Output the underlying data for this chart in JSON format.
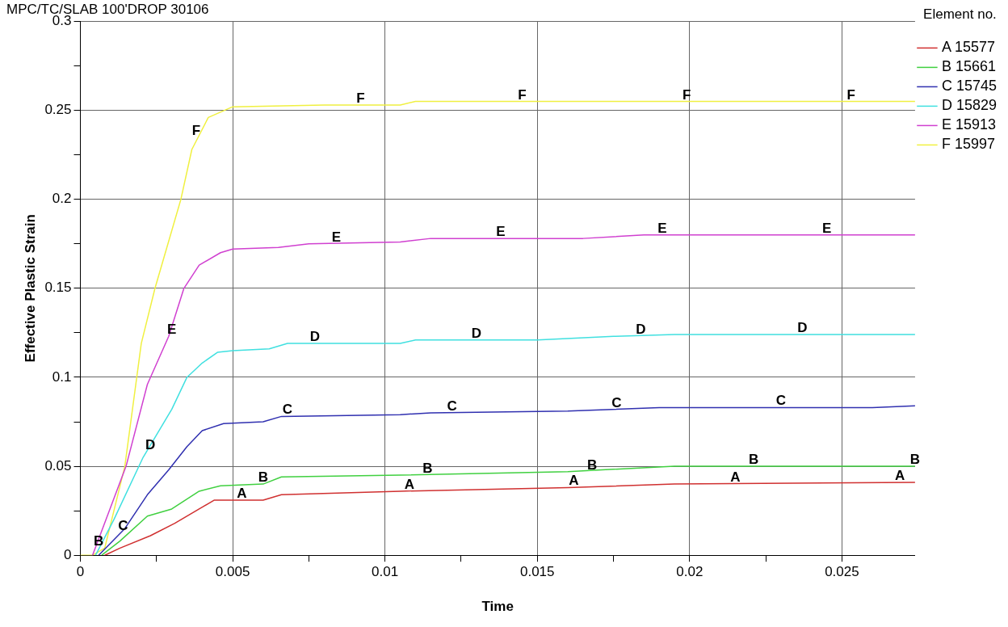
{
  "chart_data": {
    "type": "line",
    "title": "MPC/TC/SLAB 100'DROP 30106",
    "xlabel": "Time",
    "ylabel": "Effective Plastic Strain",
    "legend_title": "Element no.",
    "legend": "right",
    "grid": true,
    "marker": "none",
    "line_style": "solid",
    "xlim": [
      0,
      0.0274
    ],
    "ylim": [
      0,
      0.3
    ],
    "xticks": [
      0,
      {
        "value": 0.0025,
        "label": null
      },
      0.005,
      {
        "value": 0.0075,
        "label": null
      },
      0.01,
      {
        "value": 0.0125,
        "label": null
      },
      0.015,
      {
        "value": 0.0175,
        "label": null
      },
      0.02,
      {
        "value": 0.0225,
        "label": null
      },
      0.025
    ],
    "yticks": [
      0,
      {
        "value": 0.025,
        "label": null
      },
      0.05,
      {
        "value": 0.075,
        "label": null
      },
      0.1,
      {
        "value": 0.125,
        "label": null
      },
      0.15,
      {
        "value": 0.175,
        "label": null
      },
      0.2,
      {
        "value": 0.225,
        "label": null
      },
      0.25,
      {
        "value": 0.275,
        "label": null
      },
      0.3
    ],
    "series": [
      {
        "name": "A 15577",
        "color": "#d03030",
        "x": [
          0.0008,
          0.0013,
          0.0023,
          0.0031,
          0.0039,
          0.0044,
          0.005,
          0.006,
          0.0066,
          0.0105,
          0.016,
          0.0195,
          0.0274
        ],
        "values": [
          0,
          0.004,
          0.011,
          0.018,
          0.026,
          0.031,
          0.031,
          0.031,
          0.034,
          0.036,
          0.038,
          0.04,
          0.041
        ]
      },
      {
        "name": "B 15661",
        "color": "#40d040",
        "x": [
          0.0007,
          0.0013,
          0.0022,
          0.003,
          0.0039,
          0.0046,
          0.006,
          0.0066,
          0.0105,
          0.016,
          0.0195,
          0.0274
        ],
        "values": [
          0,
          0.008,
          0.022,
          0.026,
          0.036,
          0.039,
          0.04,
          0.044,
          0.045,
          0.047,
          0.05,
          0.05
        ]
      },
      {
        "name": "C 15745",
        "color": "#3030b0",
        "x": [
          0.0006,
          0.00146,
          0.0022,
          0.0029,
          0.0035,
          0.004,
          0.0047,
          0.006,
          0.0066,
          0.0105,
          0.0115,
          0.016,
          0.019,
          0.026,
          0.0274
        ],
        "values": [
          0,
          0.015,
          0.034,
          0.048,
          0.061,
          0.07,
          0.074,
          0.075,
          0.078,
          0.079,
          0.08,
          0.081,
          0.083,
          0.083,
          0.084
        ]
      },
      {
        "name": "D 15829",
        "color": "#40e0e0",
        "x": [
          0.0005,
          0.0011,
          0.00206,
          0.003,
          0.0035,
          0.004,
          0.0045,
          0.005,
          0.0062,
          0.0068,
          0.0105,
          0.011,
          0.015,
          0.0175,
          0.0195,
          0.0274
        ],
        "values": [
          0,
          0.02,
          0.055,
          0.082,
          0.1,
          0.108,
          0.114,
          0.115,
          0.116,
          0.119,
          0.119,
          0.121,
          0.121,
          0.123,
          0.124,
          0.124
        ]
      },
      {
        "name": "E 15913",
        "color": "#d040d0",
        "x": [
          0.0004,
          0.0015,
          0.0022,
          0.0029,
          0.0034,
          0.0039,
          0.0046,
          0.005,
          0.0065,
          0.0075,
          0.0105,
          0.0115,
          0.0165,
          0.0185,
          0.0274
        ],
        "values": [
          0,
          0.05,
          0.096,
          0.123,
          0.15,
          0.163,
          0.17,
          0.172,
          0.173,
          0.175,
          0.176,
          0.178,
          0.178,
          0.18,
          0.18
        ]
      },
      {
        "name": "F 15997",
        "color": "#f0f040",
        "x": [
          0,
          0.0004,
          0.0008,
          0.00146,
          0.002,
          0.00245,
          0.0033,
          0.00366,
          0.0042,
          0.005,
          0.008,
          0.0105,
          0.011,
          0.0274
        ],
        "values": [
          0,
          0,
          0.004,
          0.05,
          0.119,
          0.15,
          0.2,
          0.228,
          0.246,
          0.252,
          0.253,
          0.253,
          0.255,
          0.255
        ]
      }
    ],
    "annotations": [
      {
        "text": "A",
        "x": 0.0053,
        "y": 0.031
      },
      {
        "text": "A",
        "x": 0.0108,
        "y": 0.036
      },
      {
        "text": "A",
        "x": 0.0162,
        "y": 0.038
      },
      {
        "text": "A",
        "x": 0.0215,
        "y": 0.04
      },
      {
        "text": "A",
        "x": 0.0269,
        "y": 0.041
      },
      {
        "text": "B",
        "x": 0.0006,
        "y": 0.004
      },
      {
        "text": "B",
        "x": 0.006,
        "y": 0.04
      },
      {
        "text": "B",
        "x": 0.0114,
        "y": 0.045
      },
      {
        "text": "B",
        "x": 0.0168,
        "y": 0.047
      },
      {
        "text": "B",
        "x": 0.0221,
        "y": 0.05
      },
      {
        "text": "B",
        "x": 0.0274,
        "y": 0.05
      },
      {
        "text": "C",
        "x": 0.0014,
        "y": 0.013
      },
      {
        "text": "C",
        "x": 0.0068,
        "y": 0.078
      },
      {
        "text": "C",
        "x": 0.0122,
        "y": 0.08
      },
      {
        "text": "C",
        "x": 0.0176,
        "y": 0.082
      },
      {
        "text": "C",
        "x": 0.023,
        "y": 0.083
      },
      {
        "text": "D",
        "x": 0.0023,
        "y": 0.058
      },
      {
        "text": "D",
        "x": 0.0077,
        "y": 0.119
      },
      {
        "text": "D",
        "x": 0.013,
        "y": 0.121
      },
      {
        "text": "D",
        "x": 0.0184,
        "y": 0.123
      },
      {
        "text": "D",
        "x": 0.0237,
        "y": 0.124
      },
      {
        "text": "E",
        "x": 0.003,
        "y": 0.123
      },
      {
        "text": "E",
        "x": 0.0084,
        "y": 0.175
      },
      {
        "text": "E",
        "x": 0.0138,
        "y": 0.178
      },
      {
        "text": "E",
        "x": 0.0191,
        "y": 0.18
      },
      {
        "text": "E",
        "x": 0.0245,
        "y": 0.18
      },
      {
        "text": "F",
        "x": 0.0038,
        "y": 0.235
      },
      {
        "text": "F",
        "x": 0.0092,
        "y": 0.253
      },
      {
        "text": "F",
        "x": 0.0145,
        "y": 0.255
      },
      {
        "text": "F",
        "x": 0.0199,
        "y": 0.255
      },
      {
        "text": "F",
        "x": 0.0253,
        "y": 0.255
      }
    ]
  }
}
